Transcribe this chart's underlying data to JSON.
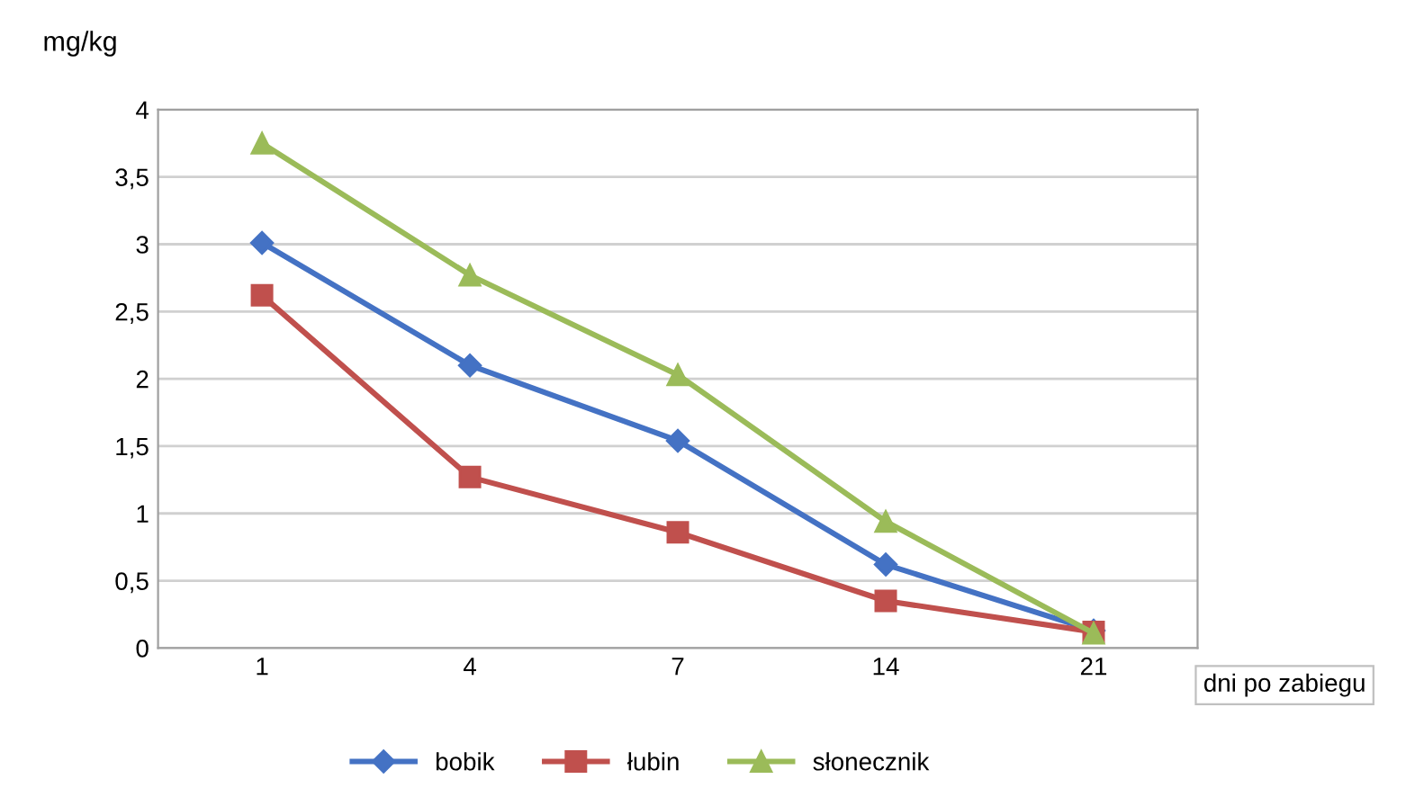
{
  "chart_data": {
    "type": "line",
    "ylabel": "mg/kg",
    "xlabel": "dni po zabiegu",
    "categories": [
      "1",
      "4",
      "7",
      "14",
      "21"
    ],
    "series": [
      {
        "name": "bobik",
        "color": "#4472c4",
        "marker": "diamond",
        "values": [
          3.01,
          2.1,
          1.54,
          0.62,
          0.13
        ]
      },
      {
        "name": "łubin",
        "color": "#c0504d",
        "marker": "square",
        "values": [
          2.62,
          1.27,
          0.86,
          0.35,
          0.12
        ]
      },
      {
        "name": "słonecznik",
        "color": "#9bbb59",
        "marker": "triangle",
        "values": [
          3.75,
          2.77,
          2.03,
          0.94,
          0.11
        ]
      }
    ],
    "ylim": [
      0,
      4
    ],
    "yticks": [
      0,
      {
        "value": 0.5,
        "label": "0,5"
      },
      1,
      {
        "value": 1.5,
        "label": "1,5"
      },
      2,
      {
        "value": 2.5,
        "label": "2,5"
      },
      3,
      {
        "value": 3.5,
        "label": "3,5"
      },
      4
    ],
    "grid": "y",
    "legend": "bottom",
    "line_style": "solid"
  }
}
